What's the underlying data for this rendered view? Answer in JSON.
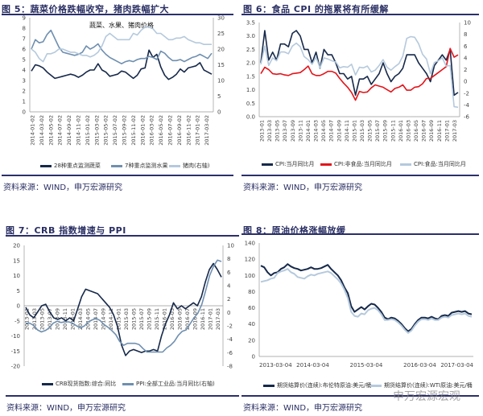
{
  "colors": {
    "dark": "#16294a",
    "mid": "#6f8fb0",
    "light": "#b5c9dd",
    "red": "#e3151b",
    "rule": "#2b2f6b"
  },
  "source_text": "资料来源：WIND，申万宏源研究",
  "watermark": "申万宏源宏观",
  "panels": [
    {
      "title": "图 5：蔬菜价格跌幅收窄，猪肉跌幅扩大"
    },
    {
      "title": "图 6：食品 CPI 的拖累将有所缓解"
    },
    {
      "title": "图 7：CRB 指数增速与 PPI"
    },
    {
      "title": "图 8：原油价格涨幅放缓"
    }
  ],
  "chart_data": [
    {
      "type": "line",
      "title": "蔬菜、水果、猪肉价格",
      "x_ticks": [
        "2014-01-02",
        "2014-03-02",
        "2014-05-02",
        "2014-07-02",
        "2014-09-02",
        "2014-11-02",
        "2015-01-02",
        "2015-03-02",
        "2015-05-02",
        "2015-07-02",
        "2015-09-02",
        "2015-11-02",
        "2016-01-02",
        "2016-03-02",
        "2016-05-02",
        "2016-07-02",
        "2016-09-02",
        "2016-11-02",
        "2017-01-02",
        "2017-03-02"
      ],
      "y_left": {
        "range": [
          0,
          9
        ],
        "ticks": [
          "0",
          "1",
          "2",
          "3",
          "4",
          "5",
          "6",
          "7",
          "8",
          "9"
        ]
      },
      "y_right": {
        "range": [
          0,
          30
        ],
        "ticks": [
          "0",
          "5",
          "10",
          "15",
          "20",
          "25",
          "30"
        ]
      },
      "series": [
        {
          "name": "28种重点监测蔬菜",
          "axis": "left",
          "color": "dark",
          "values": [
            3.9,
            4.5,
            4.4,
            4.2,
            3.8,
            3.5,
            3.2,
            3.3,
            3.4,
            3.5,
            3.6,
            3.5,
            3.3,
            3.5,
            3.8,
            4.0,
            4.0,
            4.6,
            4.0,
            3.8,
            3.4,
            3.5,
            3.6,
            3.9,
            3.8,
            3.5,
            3.2,
            3.5,
            4.1,
            4.2,
            5.9,
            5.2,
            5.5,
            4.3,
            3.5,
            3.1,
            3.3,
            3.6,
            4.1,
            3.8,
            4.2,
            4.3,
            4.4,
            4.7,
            4.0,
            3.8,
            3.6
          ]
        },
        {
          "name": "7种重点监测水果",
          "axis": "left",
          "color": "mid",
          "values": [
            6.0,
            6.9,
            6.6,
            6.7,
            7.4,
            7.8,
            7.0,
            6.2,
            5.7,
            5.6,
            5.5,
            5.4,
            5.5,
            5.7,
            6.3,
            6.0,
            6.2,
            6.5,
            5.9,
            5.5,
            5.2,
            5.0,
            4.8,
            4.6,
            4.8,
            4.9,
            4.8,
            5.0,
            5.1,
            5.1,
            5.3,
            5.2,
            5.0,
            5.8,
            5.6,
            5.2,
            4.9,
            4.9,
            5.0,
            4.8,
            5.0,
            5.2,
            5.3,
            5.5,
            5.3,
            5.1,
            5.6
          ]
        },
        {
          "name": "猪肉(右轴)",
          "axis": "right",
          "color": "light",
          "values": [
            20,
            19,
            17,
            16,
            18.5,
            18.5,
            19,
            20,
            20,
            19.5,
            19,
            19,
            18.5,
            18,
            18,
            17.5,
            18,
            19,
            21,
            24,
            25,
            24,
            23,
            23,
            23,
            23,
            25,
            24.5,
            26,
            27,
            27,
            26.5,
            25,
            25,
            24,
            23,
            23,
            23.5,
            23.5,
            24,
            23,
            22.5,
            22,
            22,
            21.5,
            21.5,
            21.5
          ]
        }
      ]
    },
    {
      "type": "line",
      "title": "",
      "x_ticks": [
        "2013-01",
        "2013-03",
        "2013-05",
        "2013-07",
        "2013-09",
        "2013-11",
        "2014-01",
        "2014-03",
        "2014-05",
        "2014-07",
        "2014-09",
        "2014-11",
        "2015-01",
        "2015-03",
        "2015-05",
        "2015-07",
        "2015-09",
        "2015-11",
        "2016-01",
        "2016-03",
        "2016-05",
        "2016-07",
        "2016-09",
        "2016-11",
        "2017-01",
        "2017-03"
      ],
      "y_left": {
        "range": [
          0,
          3.5
        ],
        "ticks": [
          "0.0",
          "0.5",
          "1.0",
          "1.5",
          "2.0",
          "2.5",
          "3.0",
          "3.5"
        ]
      },
      "y_right": {
        "range": [
          -6,
          10
        ],
        "ticks": [
          "-6",
          "-4",
          "-2",
          "0",
          "2",
          "4",
          "6",
          "8",
          "10"
        ]
      },
      "series": [
        {
          "name": "CPI:当月同比月",
          "axis": "left",
          "color": "dark",
          "values": [
            2.0,
            3.2,
            2.1,
            2.4,
            2.1,
            2.7,
            2.7,
            2.6,
            3.1,
            3.2,
            3.0,
            2.5,
            2.5,
            2.0,
            2.4,
            1.8,
            2.5,
            2.3,
            2.3,
            2.0,
            1.6,
            1.6,
            1.4,
            1.5,
            0.8,
            1.4,
            1.4,
            1.5,
            1.2,
            1.4,
            1.6,
            2.0,
            1.6,
            1.3,
            1.5,
            1.6,
            1.8,
            2.3,
            2.3,
            2.3,
            2.0,
            1.8,
            1.6,
            1.3,
            1.9,
            2.1,
            2.3,
            2.1,
            2.5,
            0.8,
            0.9
          ]
        },
        {
          "name": "CPI:非食品:当月同比月",
          "axis": "right",
          "color": "red",
          "values": [
            1.3,
            2.4,
            2.0,
            1.3,
            1.2,
            1.3,
            1.1,
            1.0,
            1.3,
            1.4,
            1.5,
            2.0,
            2.6,
            1.3,
            1.0,
            1.0,
            1.3,
            1.7,
            1.7,
            1.4,
            0.5,
            -0.3,
            -1.0,
            -1.9,
            -3.2,
            -1.7,
            -1.9,
            -1.8,
            -1.1,
            -0.6,
            -0.8,
            -1.0,
            -1.4,
            -1.8,
            -1.2,
            -1.0,
            -0.6,
            -1.5,
            -1.5,
            -1.0,
            -0.9,
            -0.4,
            0.5,
            0.5,
            1.0,
            1.5,
            2.0,
            2.5,
            5.6,
            4.1,
            4.5
          ]
        },
        {
          "name": "CPI:食品:当月同比月",
          "axis": "right",
          "color": "light",
          "values": [
            2.9,
            6.0,
            2.7,
            4.0,
            3.5,
            5.0,
            5.0,
            4.7,
            6.0,
            6.5,
            5.9,
            4.2,
            3.7,
            2.9,
            4.1,
            2.3,
            4.0,
            3.8,
            3.5,
            3.3,
            2.3,
            2.5,
            2.4,
            2.9,
            1.1,
            2.4,
            2.3,
            2.6,
            1.6,
            1.9,
            2.7,
            3.7,
            2.4,
            1.9,
            2.5,
            3.0,
            4.3,
            7.3,
            7.6,
            7.5,
            6.4,
            4.6,
            3.8,
            1.3,
            3.2,
            3.5,
            4.0,
            2.6,
            2.7,
            -4.3,
            -4.4
          ]
        }
      ]
    },
    {
      "type": "line",
      "title": "",
      "x_ticks": [
        "2013-01",
        "2013-03",
        "2013-05",
        "2013-07",
        "2013-09",
        "2013-11",
        "2014-01",
        "2014-03",
        "2014-05",
        "2014-07",
        "2014-09",
        "2014-11",
        "2015-01",
        "2015-03",
        "2015-05",
        "2015-07",
        "2015-09",
        "2015-11",
        "2016-01",
        "2016-03",
        "2016-05",
        "2016-07",
        "2016-09",
        "2016-11",
        "2017-01",
        "2017-03"
      ],
      "y_left": {
        "range": [
          -20,
          20
        ],
        "ticks": [
          "-20",
          "-15",
          "-10",
          "-5",
          "0",
          "5",
          "10",
          "15",
          "20"
        ]
      },
      "y_right": {
        "range": [
          -8,
          10
        ],
        "ticks": [
          "-8",
          "-6",
          "-4",
          "-2",
          "0",
          "2",
          "4",
          "6",
          "8",
          "10"
        ]
      },
      "series": [
        {
          "name": "CRB现货指数:综合:同比",
          "axis": "left",
          "color": "dark",
          "values": [
            -0.5,
            -3,
            -4,
            -2,
            0,
            0.5,
            -2,
            -4,
            -4.5,
            -4,
            -5,
            -4,
            -5,
            -1,
            3,
            5.5,
            5,
            4.5,
            4,
            2.5,
            1,
            -0.5,
            -3,
            -7,
            -13,
            -16.5,
            -15,
            -14.5,
            -15,
            -15.5,
            -15,
            -15,
            -14.5,
            -15,
            -10,
            -6,
            -3,
            1,
            -1,
            0,
            -1,
            0,
            1,
            0,
            3,
            8,
            12,
            14,
            12,
            9.5
          ]
        },
        {
          "name": "PPI:全部工业品:当月同比(右轴)",
          "axis": "right",
          "color": "mid",
          "values": [
            -1.6,
            -1.6,
            -1.9,
            -2.6,
            -2.9,
            -2.7,
            -2.3,
            -1.6,
            -1.3,
            -1.5,
            -1.4,
            -1.4,
            -1.6,
            -2.0,
            -2.3,
            -2.0,
            -1.4,
            -1.1,
            -0.9,
            -1.2,
            -1.8,
            -2.2,
            -2.7,
            -3.3,
            -4.3,
            -4.9,
            -4.6,
            -4.6,
            -4.6,
            -4.8,
            -5.4,
            -5.9,
            -5.9,
            -5.9,
            -5.9,
            -5.9,
            -5.3,
            -4.9,
            -4.3,
            -3.4,
            -2.8,
            -2.6,
            -1.7,
            -0.8,
            -0.1,
            1.2,
            3.3,
            5.5,
            6.9,
            7.8,
            7.6
          ]
        }
      ]
    },
    {
      "type": "line",
      "title": "",
      "x_ticks": [
        "2013-03-04",
        "2014-03-04",
        "2015-03-04",
        "2016-03-04",
        "2017-03-04"
      ],
      "y_left": {
        "range": [
          0,
          140
        ],
        "ticks": [
          "0",
          "20",
          "40",
          "60",
          "80",
          "100",
          "120",
          "140"
        ]
      },
      "series": [
        {
          "name": "期货结算价(连续):布伦特原油:美元/桶",
          "axis": "left",
          "color": "dark",
          "values": [
            112,
            110,
            104,
            100,
            103,
            104,
            108,
            110,
            114,
            111,
            109,
            108,
            106,
            107,
            108,
            110,
            108,
            108,
            109,
            111,
            113,
            108,
            104,
            100,
            94,
            85,
            78,
            62,
            55,
            58,
            61,
            58,
            62,
            65,
            64,
            60,
            55,
            48,
            46,
            48,
            47,
            44,
            40,
            35,
            31,
            34,
            40,
            45,
            48,
            48,
            47,
            49,
            47,
            46,
            50,
            51,
            50,
            54,
            55,
            56,
            55,
            56,
            53,
            52
          ]
        },
        {
          "name": "期货结算价(连续):WTI原油:美元/桶",
          "axis": "left",
          "color": "light",
          "values": [
            92,
            93,
            94,
            96,
            97,
            103,
            105,
            106,
            108,
            104,
            102,
            98,
            97,
            96,
            99,
            101,
            100,
            102,
            103,
            104,
            105,
            103,
            99,
            95,
            90,
            82,
            72,
            55,
            50,
            49,
            53,
            52,
            57,
            59,
            60,
            57,
            52,
            45,
            45,
            46,
            45,
            42,
            38,
            33,
            29,
            32,
            38,
            43,
            46,
            46,
            45,
            47,
            45,
            45,
            48,
            49,
            48,
            51,
            52,
            53,
            52,
            53,
            50,
            49
          ]
        }
      ]
    }
  ]
}
